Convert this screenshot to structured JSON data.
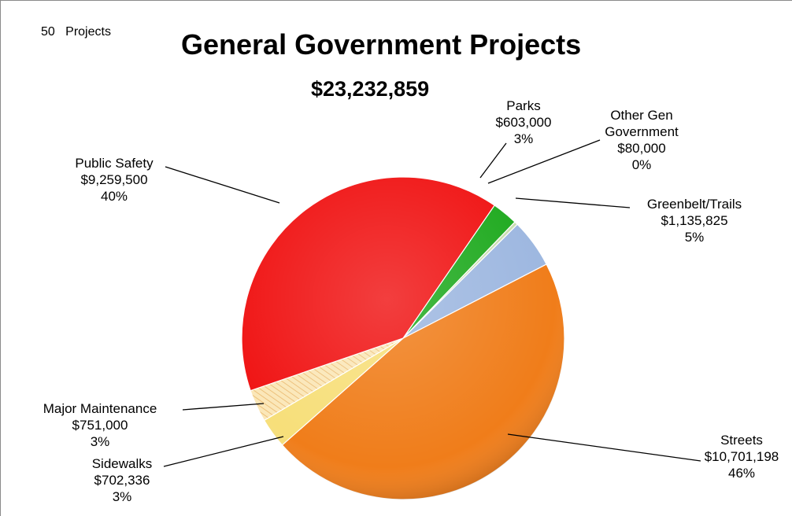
{
  "project_count": "50",
  "project_count_label": "Projects",
  "chart_data": {
    "type": "pie",
    "title": "General Government Projects",
    "subtitle": "$23,232,859",
    "slices": [
      {
        "name": "Parks",
        "value": 603000,
        "amount": "$603,000",
        "percent": "3%",
        "color": "#1faa1f"
      },
      {
        "name": "Other Gen Government",
        "value": 80000,
        "amount": "$80,000",
        "percent": "0%",
        "color": "#c9ddb0"
      },
      {
        "name": "Greenbelt/Trails",
        "value": 1135825,
        "amount": "$1,135,825",
        "percent": "5%",
        "color": "#9db7e0"
      },
      {
        "name": "Streets",
        "value": 10701198,
        "amount": "$10,701,198",
        "percent": "46%",
        "color": "#f07d1a"
      },
      {
        "name": "Sidewalks",
        "value": 702336,
        "amount": "$702,336",
        "percent": "3%",
        "color": "#f7df7a"
      },
      {
        "name": "Major Maintenance",
        "value": 751000,
        "amount": "$751,000",
        "percent": "3%",
        "color": "#fbe7b8",
        "pattern": "striped"
      },
      {
        "name": "Public Safety",
        "value": 9259500,
        "amount": "$9,259,500",
        "percent": "40%",
        "color": "#f01414"
      }
    ],
    "legend": "none",
    "data_labels": "outside-with-leader-lines"
  }
}
